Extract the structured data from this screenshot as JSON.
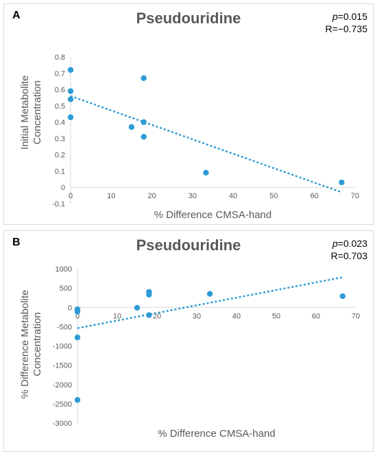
{
  "chart_data": [
    {
      "type": "scatter",
      "panel_label": "A",
      "title": "Pseudouridine",
      "stat_p_label": "p",
      "stat_p_value": "=0.015",
      "stat_r": "R=−0.735",
      "xlabel": "% Difference CMSA-hand",
      "ylabel_line1": "Initial Metabolite",
      "ylabel_line2": "Concentration",
      "xlim": [
        0,
        70
      ],
      "ylim": [
        -0.1,
        0.8
      ],
      "xticks": [
        0,
        10,
        20,
        30,
        40,
        50,
        60,
        70
      ],
      "xtick_labels": [
        "0",
        "10",
        "20",
        "30",
        "40",
        "50",
        "60",
        "70"
      ],
      "yticks": [
        -0.1,
        0,
        0.1,
        0.2,
        0.3,
        0.4,
        0.5,
        0.6,
        0.7,
        0.8
      ],
      "ytick_labels": [
        "-0.1",
        "0",
        "0.1",
        "0.2",
        "0.3",
        "0.4",
        "0.5",
        "0.6",
        "0.7",
        "0.8"
      ],
      "x": [
        0,
        0,
        0,
        0,
        18,
        15,
        18,
        18,
        33.3,
        66.7
      ],
      "y": [
        0.72,
        0.59,
        0.54,
        0.43,
        0.67,
        0.37,
        0.4,
        0.31,
        0.09,
        0.03
      ],
      "trendline": {
        "x": [
          0,
          66.7
        ],
        "y": [
          0.56,
          -0.03
        ]
      },
      "point_color": "#2e9bd6",
      "trend_color": "#2e9bd6",
      "grid": false,
      "legend": "none"
    },
    {
      "type": "scatter",
      "panel_label": "B",
      "title": "Pseudouridine",
      "stat_p_label": "p",
      "stat_p_value": "=0.023",
      "stat_r": "R=0.703",
      "xlabel": "% Difference CMSA-hand",
      "ylabel_line1": "% Difference  Metabolite",
      "ylabel_line2": "Concentration",
      "xlim": [
        0,
        70
      ],
      "ylim": [
        -3000,
        1000
      ],
      "xticks": [
        0,
        10,
        20,
        30,
        40,
        50,
        60,
        70
      ],
      "xtick_labels": [
        "0",
        "10",
        "20",
        "30",
        "40",
        "50",
        "60",
        "70"
      ],
      "yticks": [
        -3000,
        -2500,
        -2000,
        -1500,
        -1000,
        -500,
        0,
        500,
        1000
      ],
      "ytick_labels": [
        "-3000",
        "-2500",
        "-2000",
        "-1500",
        "-1000",
        "-500",
        "0",
        "500",
        "1000"
      ],
      "x": [
        0,
        0,
        0,
        0,
        15,
        18,
        18,
        18,
        33.3,
        66.7
      ],
      "y": [
        -50,
        -110,
        -780,
        -2400,
        -10,
        400,
        330,
        -200,
        350,
        290
      ],
      "trendline": {
        "x": [
          0,
          66.7
        ],
        "y": [
          -540,
          780
        ]
      },
      "point_color": "#2e9bd6",
      "trend_color": "#2e9bd6",
      "grid": false,
      "legend": "none"
    }
  ]
}
